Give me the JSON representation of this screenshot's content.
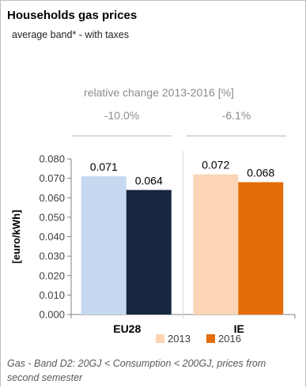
{
  "title": "Households gas prices",
  "subtitle": "average band* - with taxes",
  "relative_change": {
    "title": "relative change 2013-2016 [%]",
    "values": [
      "-10.0%",
      "-6.1%"
    ]
  },
  "footnote": "Gas - Band D2: 20GJ < Consumption < 200GJ, prices from second semester",
  "colors": {
    "EU28": {
      "2013": "#c6d9f1",
      "2016": "#17263f"
    },
    "IE": {
      "2013": "#fbd5b5",
      "2016": "#e46c0a"
    },
    "legend": {
      "2013": "#fbd5b5",
      "2016": "#e46c0a"
    }
  },
  "chart_data": {
    "type": "bar",
    "categories": [
      "EU28",
      "IE"
    ],
    "series": [
      {
        "name": "2013",
        "values": [
          0.071,
          0.072
        ]
      },
      {
        "name": "2016",
        "values": [
          0.064,
          0.068
        ]
      }
    ],
    "data_labels": [
      [
        "0.071",
        "0.064"
      ],
      [
        "0.072",
        "0.068"
      ]
    ],
    "ylabel": "[euro/kWh]",
    "ylim": [
      0,
      0.08
    ],
    "yticks": [
      "0.000",
      "0.010",
      "0.020",
      "0.030",
      "0.040",
      "0.050",
      "0.060",
      "0.070",
      "0.080"
    ],
    "legend": [
      "2013",
      "2016"
    ],
    "legend_position": "bottom",
    "grid": false
  }
}
